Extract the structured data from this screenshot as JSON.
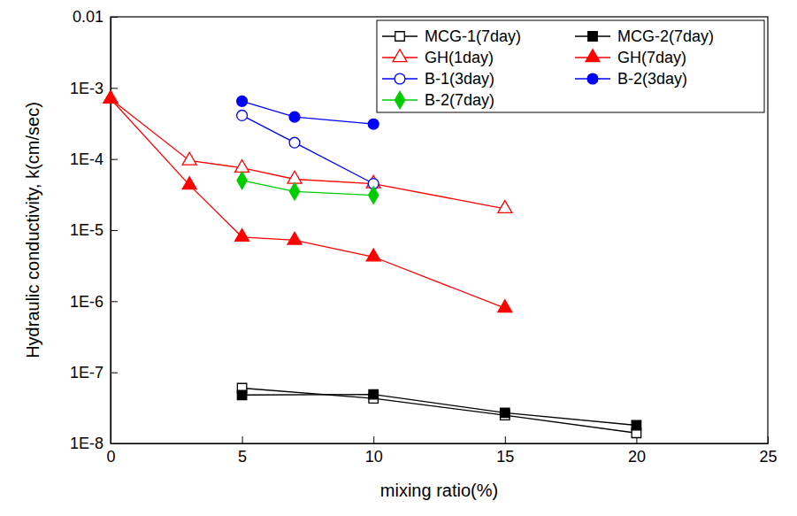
{
  "chart_data": {
    "type": "line",
    "x_label": "mixing ratio(%)",
    "y_label": "Hydraulic conductivity, k(cm/sec)",
    "log": "y",
    "grid": false,
    "legend": "upper right",
    "xlim": [
      0,
      25
    ],
    "xticks": [
      0,
      5,
      10,
      15,
      20,
      25
    ],
    "ylim": [
      1e-08,
      0.01
    ],
    "yticks": [
      {
        "value": 1e-08,
        "label": "1E-8"
      },
      {
        "value": 1e-07,
        "label": "1E-7"
      },
      {
        "value": 1e-06,
        "label": "1E-6"
      },
      {
        "value": 1e-05,
        "label": "1E-5"
      },
      {
        "value": 0.0001,
        "label": "1E-4"
      },
      {
        "value": 0.001,
        "label": "1E-3"
      },
      0.01
    ],
    "series": [
      {
        "name": "MCG-1(7day)",
        "color": "#000000",
        "marker": "square-open",
        "line_style": "solid",
        "x": [
          5,
          10,
          15,
          20
        ],
        "values": [
          6e-08,
          4.3e-08,
          2.5e-08,
          1.4e-08
        ]
      },
      {
        "name": "MCG-2(7day)",
        "color": "#000000",
        "marker": "square",
        "line_style": "solid",
        "x": [
          5,
          10,
          15,
          20
        ],
        "values": [
          4.8e-08,
          4.9e-08,
          2.7e-08,
          1.8e-08
        ]
      },
      {
        "name": "GH(1day)",
        "color": "#ff0000",
        "marker": "triangle-open",
        "line_style": "solid",
        "x": [
          0,
          3,
          5,
          7,
          10,
          15
        ],
        "values": [
          0.0007,
          9.5e-05,
          7.5e-05,
          5.2e-05,
          4.5e-05,
          2e-05
        ]
      },
      {
        "name": "GH(7day)",
        "color": "#ff0000",
        "marker": "triangle",
        "line_style": "solid",
        "x": [
          0,
          3,
          5,
          7,
          10,
          15
        ],
        "values": [
          0.0007,
          4.3e-05,
          8e-06,
          7.2e-06,
          4.2e-06,
          8e-07
        ]
      },
      {
        "name": "B-1(3day)",
        "color": "#0000ff",
        "marker": "circle-open",
        "line_style": "solid",
        "x": [
          5,
          7,
          10
        ],
        "values": [
          0.00041,
          0.00017,
          4.5e-05
        ]
      },
      {
        "name": "B-2(3day)",
        "color": "#0000ff",
        "marker": "circle",
        "line_style": "solid",
        "x": [
          5,
          7,
          10
        ],
        "values": [
          0.00065,
          0.00039,
          0.00031
        ]
      },
      {
        "name": "B-2(7day)",
        "color": "#00cc00",
        "marker": "diamond",
        "line_style": "solid",
        "x": [
          5,
          7,
          10
        ],
        "values": [
          5e-05,
          3.5e-05,
          3.1e-05
        ]
      }
    ]
  }
}
